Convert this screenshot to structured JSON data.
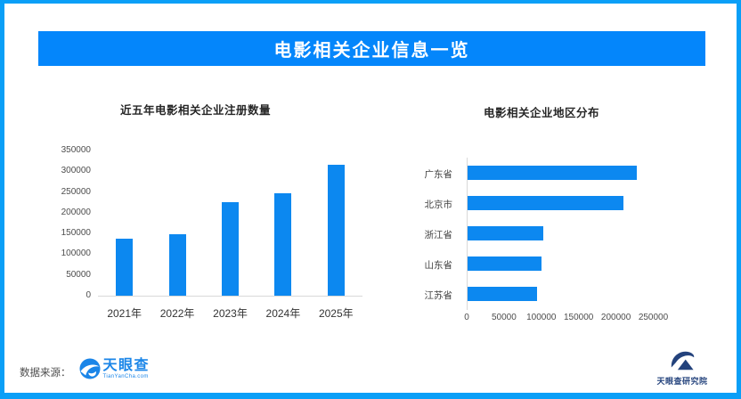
{
  "page": {
    "title": "电影相关企业信息一览"
  },
  "colors": {
    "frame": "#0a9ff7",
    "banner": "#0486fb",
    "bar": "#0c88f0",
    "axis": "#d9d9d9",
    "title_text": "#262626",
    "tick_text": "#4d4d4d",
    "tyc_blue": "#1a85e8",
    "institute_navy": "#23427c"
  },
  "chart_data": [
    {
      "type": "bar",
      "orientation": "vertical",
      "title": "近五年电影相关企业注册数量",
      "categories": [
        "2021年",
        "2022年",
        "2023年",
        "2024年",
        "2025年"
      ],
      "values": [
        137000,
        148000,
        226000,
        248000,
        316000
      ],
      "xlabel": "",
      "ylabel": "",
      "ylim": [
        0,
        350000
      ],
      "yticks": [
        0,
        50000,
        100000,
        150000,
        200000,
        250000,
        300000,
        350000
      ],
      "grid": false,
      "legend": false
    },
    {
      "type": "bar",
      "orientation": "horizontal",
      "title": "电影相关企业地区分布",
      "categories": [
        "广东省",
        "北京市",
        "浙江省",
        "山东省",
        "江苏省"
      ],
      "values": [
        227000,
        209000,
        101000,
        99000,
        93000
      ],
      "xlabel": "",
      "ylabel": "",
      "xlim": [
        0,
        250000
      ],
      "xticks": [
        0,
        50000,
        100000,
        150000,
        200000,
        250000
      ],
      "grid": false,
      "legend": false
    }
  ],
  "footer": {
    "source_label": "数据来源：",
    "logo_text": "天眼查",
    "logo_domain": "TianYanCha.com",
    "institute": "天眼查研究院"
  }
}
